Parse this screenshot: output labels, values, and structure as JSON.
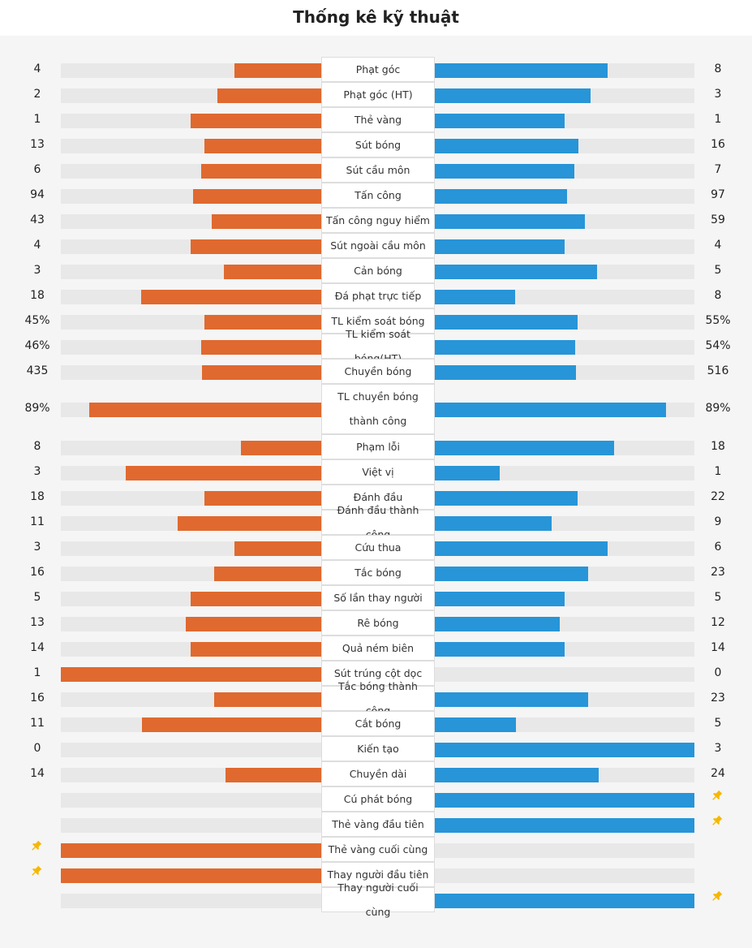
{
  "title": "Thống kê kỹ thuật",
  "colors": {
    "home": "#e0692f",
    "away": "#2795d8",
    "track": "#e8e8e8",
    "pin": "#f5b800"
  },
  "stats": [
    {
      "label": "Phạt góc",
      "home": "4",
      "away": "8",
      "home_share": 0.333,
      "away_share": 0.667
    },
    {
      "label": "Phạt góc (HT)",
      "home": "2",
      "away": "3",
      "home_share": 0.4,
      "away_share": 0.6
    },
    {
      "label": "Thẻ vàng",
      "home": "1",
      "away": "1",
      "home_share": 0.5,
      "away_share": 0.5
    },
    {
      "label": "Sút bóng",
      "home": "13",
      "away": "16",
      "home_share": 0.448,
      "away_share": 0.552
    },
    {
      "label": "Sút cầu môn",
      "home": "6",
      "away": "7",
      "home_share": 0.462,
      "away_share": 0.538
    },
    {
      "label": "Tấn công",
      "home": "94",
      "away": "97",
      "home_share": 0.492,
      "away_share": 0.508
    },
    {
      "label": "Tấn công nguy hiểm",
      "home": "43",
      "away": "59",
      "home_share": 0.422,
      "away_share": 0.578
    },
    {
      "label": "Sút ngoài cầu môn",
      "home": "4",
      "away": "4",
      "home_share": 0.5,
      "away_share": 0.5
    },
    {
      "label": "Cản bóng",
      "home": "3",
      "away": "5",
      "home_share": 0.375,
      "away_share": 0.625
    },
    {
      "label": "Đá phạt trực tiếp",
      "home": "18",
      "away": "8",
      "home_share": 0.692,
      "away_share": 0.308
    },
    {
      "label": "TL kiểm soát bóng",
      "home": "45%",
      "away": "55%",
      "home_share": 0.45,
      "away_share": 0.55
    },
    {
      "label": "TL kiểm soát bóng(HT)",
      "home": "46%",
      "away": "54%",
      "home_share": 0.46,
      "away_share": 0.54
    },
    {
      "label": "Chuyền bóng",
      "home": "435",
      "away": "516",
      "home_share": 0.457,
      "away_share": 0.543
    },
    {
      "label": "TL chuyền bóng thành công",
      "home": "89%",
      "away": "89%",
      "home_share": 0.89,
      "away_share": 0.89,
      "tall": true
    },
    {
      "label": "Phạm lỗi",
      "home": "8",
      "away": "18",
      "home_share": 0.308,
      "away_share": 0.692
    },
    {
      "label": "Việt vị",
      "home": "3",
      "away": "1",
      "home_share": 0.75,
      "away_share": 0.25
    },
    {
      "label": "Đánh đầu",
      "home": "18",
      "away": "22",
      "home_share": 0.45,
      "away_share": 0.55
    },
    {
      "label": "Đánh đầu thành công",
      "home": "11",
      "away": "9",
      "home_share": 0.55,
      "away_share": 0.45
    },
    {
      "label": "Cứu thua",
      "home": "3",
      "away": "6",
      "home_share": 0.333,
      "away_share": 0.667
    },
    {
      "label": "Tắc bóng",
      "home": "16",
      "away": "23",
      "home_share": 0.41,
      "away_share": 0.59
    },
    {
      "label": "Số lần thay người",
      "home": "5",
      "away": "5",
      "home_share": 0.5,
      "away_share": 0.5
    },
    {
      "label": "Rê bóng",
      "home": "13",
      "away": "12",
      "home_share": 0.52,
      "away_share": 0.48
    },
    {
      "label": "Quả ném biên",
      "home": "14",
      "away": "14",
      "home_share": 0.5,
      "away_share": 0.5
    },
    {
      "label": "Sút trúng cột dọc",
      "home": "1",
      "away": "0",
      "home_share": 1.0,
      "away_share": 0.0
    },
    {
      "label": "Tắc bóng thành công",
      "home": "16",
      "away": "23",
      "home_share": 0.41,
      "away_share": 0.59
    },
    {
      "label": "Cắt bóng",
      "home": "11",
      "away": "5",
      "home_share": 0.688,
      "away_share": 0.312
    },
    {
      "label": "Kiến tạo",
      "home": "0",
      "away": "3",
      "home_share": 0.0,
      "away_share": 1.0
    },
    {
      "label": "Chuyền dài",
      "home": "14",
      "away": "24",
      "home_share": 0.368,
      "away_share": 0.632
    },
    {
      "label": "Cú phát bóng",
      "home": "",
      "away": "",
      "home_share": 0.0,
      "away_share": 1.0,
      "pin": "away"
    },
    {
      "label": "Thẻ vàng đầu tiên",
      "home": "",
      "away": "",
      "home_share": 0.0,
      "away_share": 1.0,
      "pin": "away"
    },
    {
      "label": "Thẻ vàng cuối cùng",
      "home": "",
      "away": "",
      "home_share": 1.0,
      "away_share": 0.0,
      "pin": "home"
    },
    {
      "label": "Thay người đầu tiên",
      "home": "",
      "away": "",
      "home_share": 1.0,
      "away_share": 0.0,
      "pin": "home"
    },
    {
      "label": "Thay người cuối cùng",
      "home": "",
      "away": "",
      "home_share": 0.0,
      "away_share": 1.0,
      "pin": "away"
    }
  ]
}
